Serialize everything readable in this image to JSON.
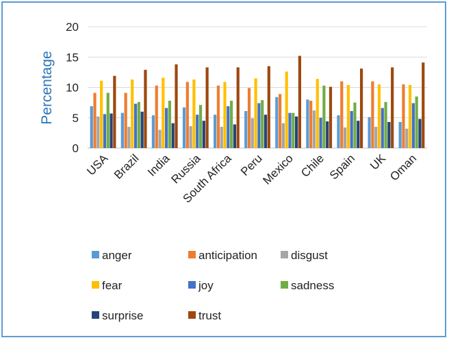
{
  "chart_data": {
    "type": "bar",
    "ylabel": "Percentage",
    "xlabel": "",
    "ylim": [
      0,
      20
    ],
    "yticks": [
      0,
      5,
      10,
      15,
      20
    ],
    "grid": true,
    "legend_position": "bottom",
    "categories": [
      "USA",
      "Brazil",
      "India",
      "Russia",
      "South Africa",
      "Peru",
      "Mexico",
      "Chile",
      "Spain",
      "UK",
      "Oman"
    ],
    "series": [
      {
        "name": "anger",
        "color": "#5b9bd5",
        "values": [
          6.9,
          5.8,
          5.4,
          6.7,
          5.5,
          6.1,
          8.4,
          8.0,
          5.4,
          5.1,
          4.3
        ]
      },
      {
        "name": "anticipation",
        "color": "#ed7d31",
        "values": [
          9.1,
          9.1,
          10.3,
          10.9,
          10.3,
          9.9,
          8.9,
          7.8,
          11.0,
          11.0,
          10.5
        ]
      },
      {
        "name": "disgust",
        "color": "#a5a5a5",
        "values": [
          5.2,
          3.5,
          3.0,
          3.6,
          3.5,
          4.9,
          4.1,
          6.2,
          3.4,
          3.5,
          3.2
        ]
      },
      {
        "name": "fear",
        "color": "#ffc000",
        "values": [
          11.1,
          11.3,
          11.6,
          11.3,
          10.9,
          11.5,
          12.6,
          11.4,
          10.4,
          10.5,
          10.4
        ]
      },
      {
        "name": "joy",
        "color": "#4472c4",
        "values": [
          5.6,
          7.3,
          6.6,
          5.5,
          6.9,
          7.4,
          5.8,
          5.0,
          6.1,
          6.6,
          7.4
        ]
      },
      {
        "name": "sadness",
        "color": "#70ad47",
        "values": [
          9.1,
          7.6,
          7.8,
          7.1,
          7.8,
          7.9,
          5.8,
          10.3,
          7.5,
          7.6,
          8.5
        ]
      },
      {
        "name": "surprise",
        "color": "#264478",
        "values": [
          5.7,
          6.0,
          4.1,
          4.5,
          3.9,
          5.5,
          5.2,
          4.4,
          4.5,
          4.3,
          4.8
        ]
      },
      {
        "name": "trust",
        "color": "#9e480e",
        "values": [
          11.9,
          12.9,
          13.8,
          13.3,
          13.3,
          13.5,
          15.2,
          10.1,
          13.1,
          13.3,
          14.1
        ]
      }
    ]
  }
}
